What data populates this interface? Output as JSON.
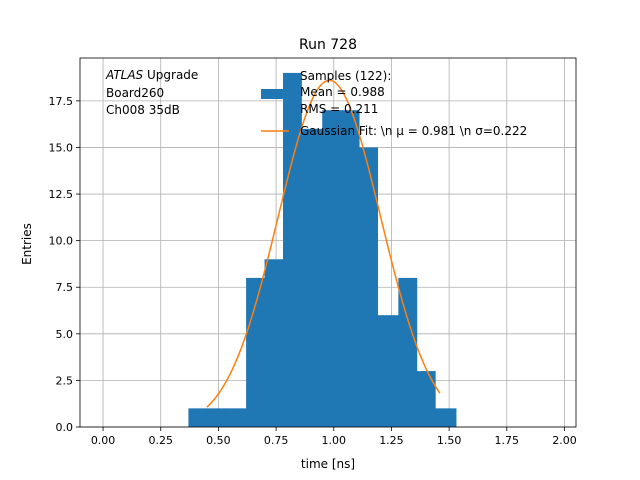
{
  "chart_data": {
    "type": "bar",
    "title": "Run 728",
    "xlabel": "time [ns]",
    "ylabel": "Entries",
    "xlim": [
      -0.1,
      2.05
    ],
    "ylim": [
      0,
      19.8
    ],
    "grid": true,
    "x_ticks": [
      0.0,
      0.25,
      0.5,
      0.75,
      1.0,
      1.25,
      1.5,
      1.75,
      2.0
    ],
    "x_tick_labels": [
      "0.00",
      "0.25",
      "0.50",
      "0.75",
      "1.00",
      "1.25",
      "1.50",
      "1.75",
      "2.00"
    ],
    "y_ticks": [
      0.0,
      2.5,
      5.0,
      7.5,
      10.0,
      12.5,
      15.0,
      17.5
    ],
    "y_tick_labels": [
      "0.0",
      "2.5",
      "5.0",
      "7.5",
      "10.0",
      "12.5",
      "15.0",
      "17.5"
    ],
    "bins": [
      {
        "x0": 0.37,
        "x1": 0.45,
        "count": 1
      },
      {
        "x0": 0.45,
        "x1": 0.53,
        "count": 1
      },
      {
        "x0": 0.53,
        "x1": 0.62,
        "count": 1
      },
      {
        "x0": 0.62,
        "x1": 0.7,
        "count": 8
      },
      {
        "x0": 0.7,
        "x1": 0.78,
        "count": 9
      },
      {
        "x0": 0.78,
        "x1": 0.86,
        "count": 19
      },
      {
        "x0": 0.86,
        "x1": 0.95,
        "count": 16
      },
      {
        "x0": 0.95,
        "x1": 1.03,
        "count": 17
      },
      {
        "x0": 1.03,
        "x1": 1.11,
        "count": 17
      },
      {
        "x0": 1.11,
        "x1": 1.19,
        "count": 15
      },
      {
        "x0": 1.19,
        "x1": 1.28,
        "count": 6
      },
      {
        "x0": 1.28,
        "x1": 1.36,
        "count": 8
      },
      {
        "x0": 1.36,
        "x1": 1.44,
        "count": 3
      },
      {
        "x0": 1.44,
        "x1": 1.53,
        "count": 1
      }
    ],
    "fit": {
      "mu": 0.981,
      "sigma": 0.222,
      "amplitude": 18.6,
      "x_range": [
        0.45,
        1.46
      ]
    },
    "legend": {
      "placement": "top-right",
      "samples_lines": [
        "Samples (122):",
        " Mean = 0.988",
        " RMS = 0.211"
      ],
      "fit_label": "Gaussian Fit: \\n μ = 0.981 \\n σ=0.222"
    },
    "annotation": {
      "placement": "top-left",
      "italic_part": "ATLAS",
      "rest_line1": " Upgrade",
      "line2": " Board260",
      "line3": " Ch008 35dB"
    },
    "colors": {
      "bars": "#1f77b4",
      "fit": "#ff7f0e",
      "grid": "#b0b0b0"
    }
  }
}
